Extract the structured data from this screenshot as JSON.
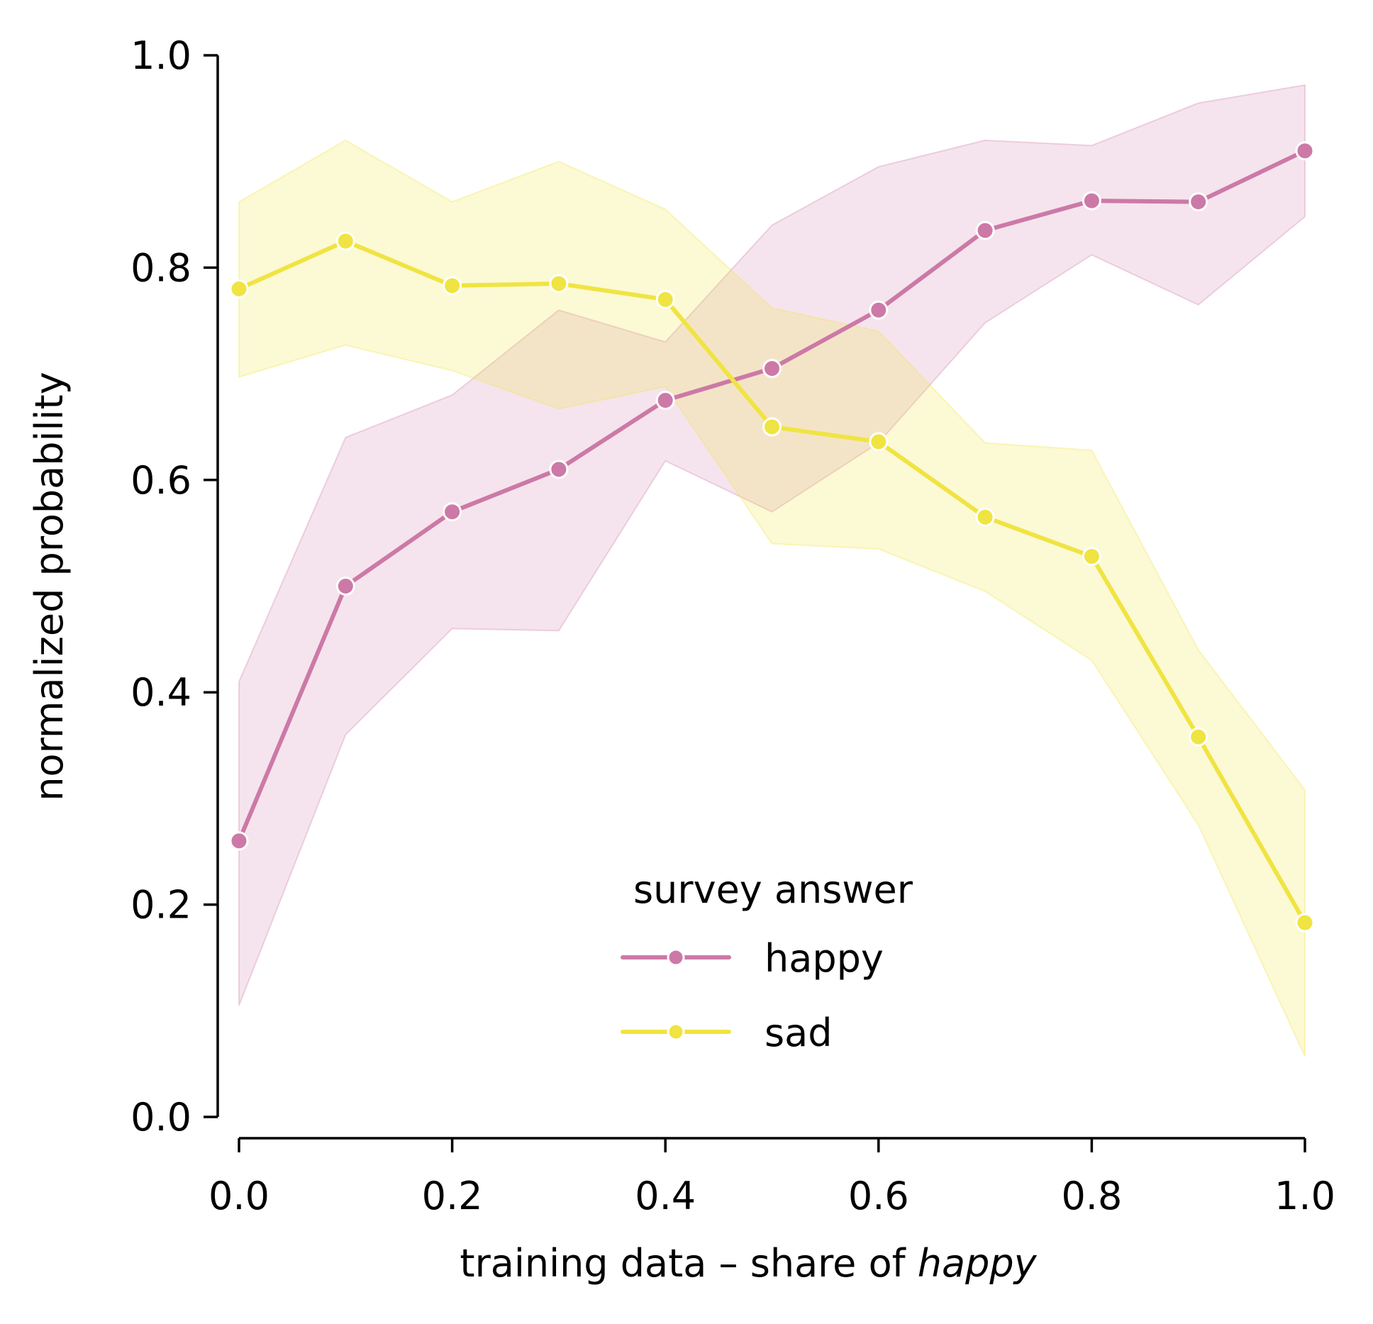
{
  "chart_data": {
    "type": "line",
    "title": "",
    "xlabel": "training data – share of ",
    "xlabel_italic": "happy",
    "ylabel": "normalized probability",
    "xlim": [
      0.0,
      1.0
    ],
    "ylim": [
      0.0,
      1.0
    ],
    "x_ticks": [
      "0.0",
      "0.2",
      "0.4",
      "0.6",
      "0.8",
      "1.0"
    ],
    "y_ticks": [
      "0.0",
      "0.2",
      "0.4",
      "0.6",
      "0.8",
      "1.0"
    ],
    "grid": false,
    "legend": {
      "title": "survey answer",
      "placement": "lower-center"
    },
    "x": [
      0.0,
      0.1,
      0.2,
      0.3,
      0.4,
      0.5,
      0.6,
      0.7,
      0.8,
      0.9,
      1.0
    ],
    "series": [
      {
        "name": "happy",
        "color": "#cc79a7",
        "values": [
          0.26,
          0.5,
          0.57,
          0.61,
          0.675,
          0.705,
          0.76,
          0.835,
          0.863,
          0.862,
          0.91
        ],
        "ci_low": [
          0.105,
          0.36,
          0.46,
          0.458,
          0.618,
          0.57,
          0.635,
          0.748,
          0.812,
          0.765,
          0.848
        ],
        "ci_high": [
          0.41,
          0.64,
          0.68,
          0.76,
          0.73,
          0.84,
          0.895,
          0.92,
          0.915,
          0.955,
          0.972
        ]
      },
      {
        "name": "sad",
        "color": "#f0e442",
        "values": [
          0.78,
          0.825,
          0.783,
          0.785,
          0.77,
          0.65,
          0.636,
          0.565,
          0.528,
          0.358,
          0.183
        ],
        "ci_low": [
          0.697,
          0.727,
          0.703,
          0.667,
          0.688,
          0.54,
          0.535,
          0.495,
          0.43,
          0.275,
          0.057
        ],
        "ci_high": [
          0.862,
          0.92,
          0.862,
          0.9,
          0.855,
          0.762,
          0.74,
          0.635,
          0.628,
          0.44,
          0.308
        ]
      }
    ]
  }
}
